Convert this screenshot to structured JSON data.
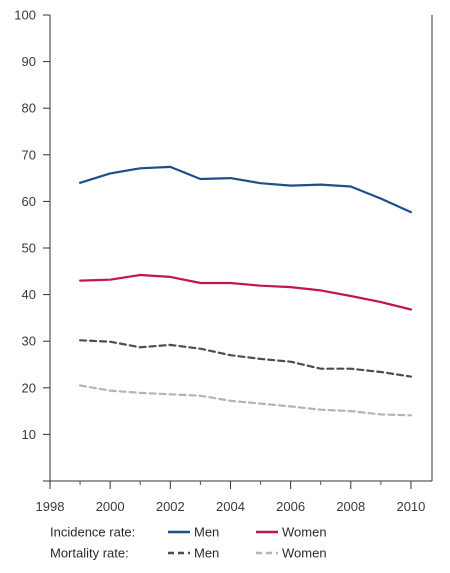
{
  "chart_data": {
    "type": "line",
    "x": [
      1999,
      2000,
      2001,
      2002,
      2003,
      2004,
      2005,
      2006,
      2007,
      2008,
      2009,
      2010
    ],
    "x_ticks": [
      "1998",
      "2000",
      "2002",
      "2004",
      "2006",
      "2008",
      "2010"
    ],
    "y_ticks": [
      "10",
      "20",
      "30",
      "40",
      "50",
      "60",
      "70",
      "80",
      "90",
      "100"
    ],
    "xlim": [
      1998,
      2010.7
    ],
    "ylim": [
      0,
      100
    ],
    "grid": false,
    "series": [
      {
        "group": "Incidence rate",
        "name": "Men",
        "color": "#1f4e8c",
        "dash": false,
        "values": [
          64.0,
          66.0,
          67.1,
          67.4,
          64.8,
          65.0,
          63.9,
          63.4,
          63.6,
          63.2,
          60.6,
          57.7
        ]
      },
      {
        "group": "Incidence rate",
        "name": "Women",
        "color": "#c0174a",
        "dash": false,
        "values": [
          43.0,
          43.2,
          44.2,
          43.8,
          42.5,
          42.5,
          41.9,
          41.6,
          40.9,
          39.7,
          38.4,
          36.8
        ]
      },
      {
        "group": "Mortality rate",
        "name": "Men",
        "color": "#4d4d4d",
        "dash": true,
        "values": [
          30.2,
          29.9,
          28.7,
          29.2,
          28.4,
          27.0,
          26.2,
          25.6,
          24.1,
          24.1,
          23.4,
          22.4
        ]
      },
      {
        "group": "Mortality rate",
        "name": "Women",
        "color": "#b4b4b4",
        "dash": true,
        "values": [
          20.5,
          19.4,
          18.9,
          18.6,
          18.3,
          17.2,
          16.6,
          16.0,
          15.3,
          15.0,
          14.3,
          14.1
        ]
      }
    ],
    "legend": {
      "position": "bottom",
      "incidence_label": "Incidence rate:",
      "mortality_label": "Mortality rate:",
      "men": "Men",
      "women": "Women"
    }
  }
}
